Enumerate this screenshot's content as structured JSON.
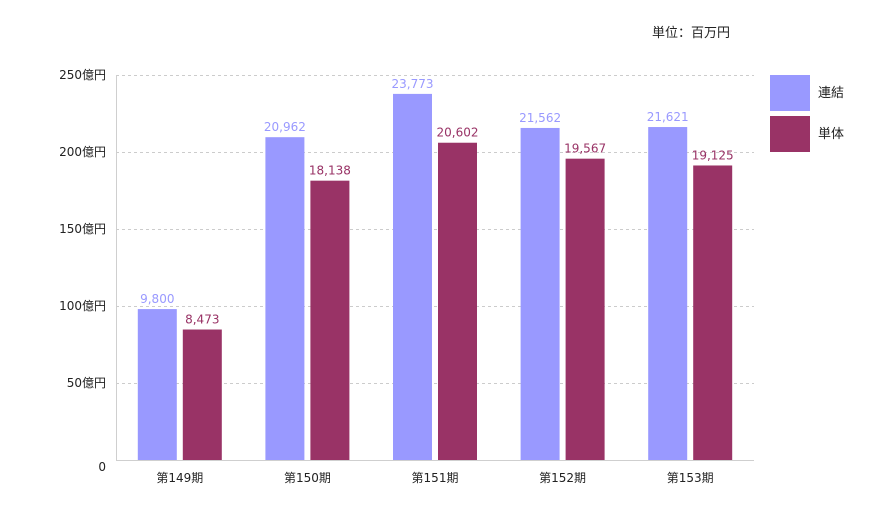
{
  "unit_note": "単位：百万円",
  "colors": {
    "consolidated": "#9999ff",
    "standalone": "#993366"
  },
  "chart_data": {
    "type": "bar",
    "title": "",
    "xlabel": "",
    "ylabel": "",
    "categories": [
      "第149期",
      "第150期",
      "第151期",
      "第152期",
      "第153期"
    ],
    "series": [
      {
        "name": "連結",
        "values": [
          9800,
          20962,
          23773,
          21562,
          21621
        ],
        "labels": [
          "9,800",
          "20,962",
          "23,773",
          "21,562",
          "21,621"
        ]
      },
      {
        "name": "単体",
        "values": [
          8473,
          18138,
          20602,
          19567,
          19125
        ],
        "labels": [
          "8,473",
          "18,138",
          "20,602",
          "19,567",
          "19,125"
        ]
      }
    ],
    "ylim": [
      0,
      25000
    ],
    "yticks": [
      0,
      5000,
      10000,
      15000,
      20000,
      25000
    ],
    "ytick_labels": [
      "0",
      "50億円",
      "100億円",
      "150億円",
      "200億円",
      "250億円"
    ],
    "grid": true,
    "legend": "top-right"
  }
}
